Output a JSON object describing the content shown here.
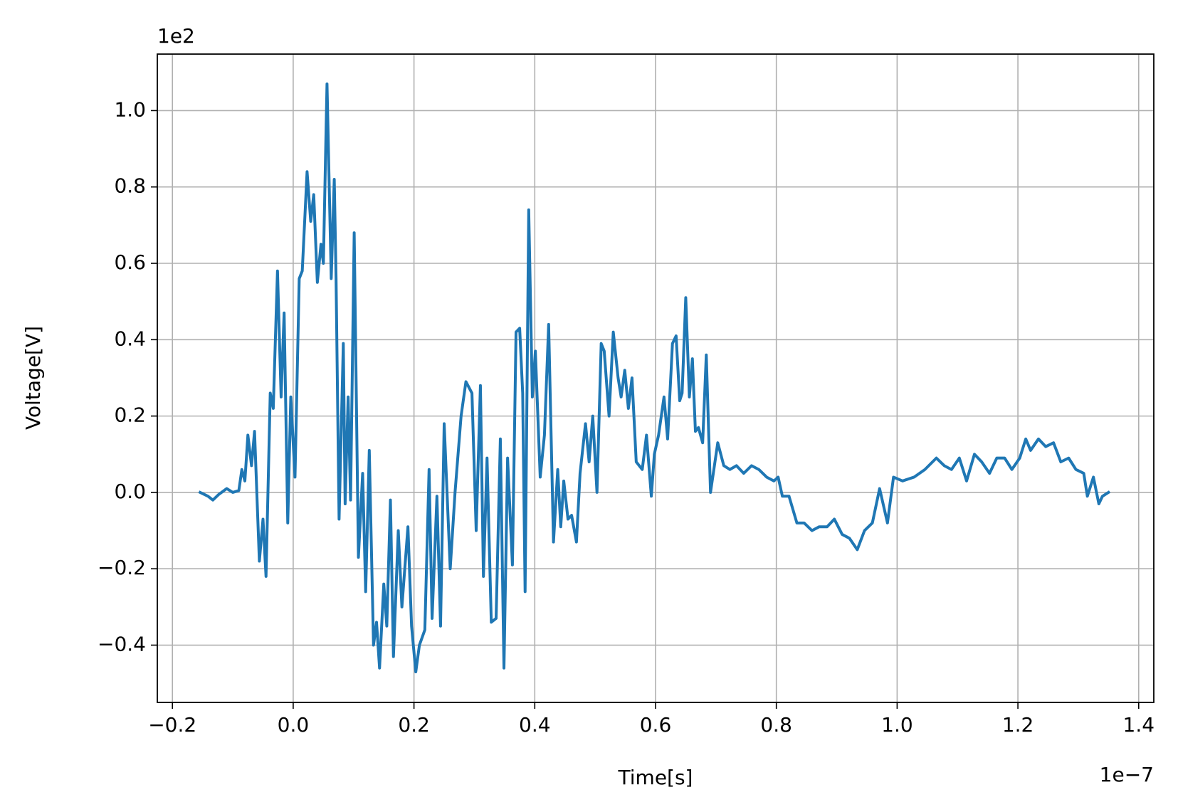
{
  "chart_data": {
    "type": "line",
    "xlabel": "Time[s]",
    "ylabel": "Voltage[V]",
    "x_offset_label": "1e−7",
    "y_offset_label": "1e2",
    "color": "#1f77b4",
    "grid": true,
    "xlim": [
      -0.225,
      1.425
    ],
    "xticks": [
      {
        "value": -0.2,
        "label": "−0.2"
      },
      {
        "value": 0,
        "label": "0.0"
      },
      0.2,
      0.4,
      0.6,
      0.8,
      {
        "value": 1,
        "label": "1.0"
      },
      1.2,
      1.4
    ],
    "ylim": [
      -0.55,
      1.148
    ],
    "yticks": [
      {
        "value": -0.4,
        "label": "−0.4"
      },
      {
        "value": -0.2,
        "label": "−0.2"
      },
      {
        "value": 0,
        "label": "0.0"
      },
      0.2,
      0.4,
      0.6,
      0.8,
      {
        "value": 1,
        "label": "1.0"
      }
    ],
    "x": [
      -0.154,
      -0.141,
      -0.133,
      -0.123,
      -0.11,
      -0.1,
      -0.09,
      -0.085,
      -0.08,
      -0.075,
      -0.069,
      -0.064,
      -0.056,
      -0.05,
      -0.045,
      -0.038,
      -0.033,
      -0.026,
      -0.02,
      -0.015,
      -0.009,
      -0.004,
      0.003,
      0.01,
      0.015,
      0.023,
      0.029,
      0.034,
      0.04,
      0.046,
      0.05,
      0.056,
      0.063,
      0.068,
      0.071,
      0.076,
      0.083,
      0.086,
      0.091,
      0.095,
      0.101,
      0.108,
      0.115,
      0.12,
      0.126,
      0.133,
      0.138,
      0.143,
      0.15,
      0.155,
      0.161,
      0.166,
      0.174,
      0.18,
      0.19,
      0.196,
      0.203,
      0.209,
      0.218,
      0.225,
      0.23,
      0.238,
      0.244,
      0.25,
      0.26,
      0.268,
      0.278,
      0.286,
      0.296,
      0.303,
      0.31,
      0.315,
      0.321,
      0.328,
      0.336,
      0.343,
      0.349,
      0.355,
      0.363,
      0.369,
      0.375,
      0.38,
      0.384,
      0.39,
      0.396,
      0.401,
      0.409,
      0.416,
      0.423,
      0.431,
      0.438,
      0.443,
      0.448,
      0.455,
      0.461,
      0.469,
      0.475,
      0.484,
      0.49,
      0.496,
      0.503,
      0.51,
      0.515,
      0.523,
      0.53,
      0.538,
      0.543,
      0.549,
      0.555,
      0.561,
      0.568,
      0.578,
      0.585,
      0.593,
      0.598,
      0.605,
      0.614,
      0.62,
      0.628,
      0.634,
      0.64,
      0.644,
      0.65,
      0.656,
      0.661,
      0.666,
      0.671,
      0.678,
      0.684,
      0.691,
      0.703,
      0.713,
      0.723,
      0.734,
      0.746,
      0.759,
      0.771,
      0.784,
      0.796,
      0.803,
      0.81,
      0.821,
      0.834,
      0.846,
      0.859,
      0.871,
      0.884,
      0.896,
      0.909,
      0.921,
      0.934,
      0.946,
      0.959,
      0.971,
      0.984,
      0.994,
      1.009,
      1.028,
      1.046,
      1.065,
      1.078,
      1.09,
      1.103,
      1.115,
      1.128,
      1.14,
      1.153,
      1.165,
      1.178,
      1.19,
      1.203,
      1.213,
      1.221,
      1.234,
      1.246,
      1.259,
      1.271,
      1.284,
      1.296,
      1.309,
      1.315,
      1.325,
      1.334,
      1.34,
      1.35
    ],
    "values": [
      0,
      -0.01,
      -0.02,
      -0.005,
      0.01,
      0,
      0.005,
      0.06,
      0.03,
      0.15,
      0.07,
      0.16,
      -0.18,
      -0.07,
      -0.22,
      0.26,
      0.22,
      0.58,
      0.25,
      0.47,
      -0.08,
      0.25,
      0.04,
      0.56,
      0.58,
      0.84,
      0.71,
      0.78,
      0.55,
      0.65,
      0.6,
      1.07,
      0.56,
      0.82,
      0.56,
      -0.07,
      0.39,
      -0.03,
      0.25,
      -0.02,
      0.68,
      -0.17,
      0.05,
      -0.26,
      0.11,
      -0.4,
      -0.34,
      -0.46,
      -0.24,
      -0.35,
      -0.02,
      -0.43,
      -0.1,
      -0.3,
      -0.09,
      -0.35,
      -0.47,
      -0.4,
      -0.36,
      0.06,
      -0.33,
      -0.01,
      -0.35,
      0.18,
      -0.2,
      0,
      0.2,
      0.29,
      0.26,
      -0.1,
      0.28,
      -0.22,
      0.09,
      -0.34,
      -0.33,
      0.14,
      -0.46,
      0.09,
      -0.19,
      0.42,
      0.43,
      0.26,
      -0.26,
      0.74,
      0.25,
      0.37,
      0.04,
      0.15,
      0.44,
      -0.13,
      0.06,
      -0.09,
      0.03,
      -0.07,
      -0.06,
      -0.13,
      0.05,
      0.18,
      0.08,
      0.2,
      0,
      0.39,
      0.37,
      0.2,
      0.42,
      0.3,
      0.25,
      0.32,
      0.22,
      0.3,
      0.08,
      0.06,
      0.15,
      -0.01,
      0.1,
      0.15,
      0.25,
      0.14,
      0.39,
      0.41,
      0.24,
      0.26,
      0.51,
      0.25,
      0.35,
      0.16,
      0.17,
      0.13,
      0.36,
      0,
      0.13,
      0.07,
      0.06,
      0.07,
      0.05,
      0.07,
      0.06,
      0.04,
      0.03,
      0.04,
      -0.01,
      -0.01,
      -0.08,
      -0.08,
      -0.1,
      -0.09,
      -0.09,
      -0.07,
      -0.11,
      -0.12,
      -0.15,
      -0.1,
      -0.08,
      0.01,
      -0.08,
      0.04,
      0.03,
      0.04,
      0.06,
      0.09,
      0.07,
      0.06,
      0.09,
      0.03,
      0.1,
      0.08,
      0.05,
      0.09,
      0.09,
      0.06,
      0.09,
      0.14,
      0.11,
      0.14,
      0.12,
      0.13,
      0.08,
      0.09,
      0.06,
      0.05,
      -0.01,
      0.04,
      -0.03,
      -0.01,
      0
    ]
  }
}
